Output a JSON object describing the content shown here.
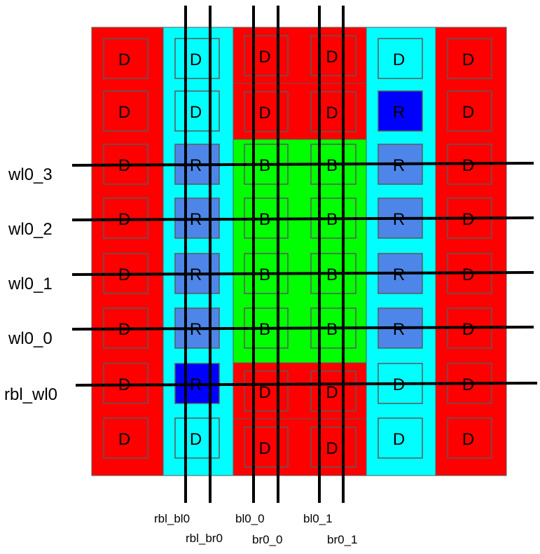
{
  "colors": {
    "dummy_red": "#ff0000",
    "dummy_cyan": "#00ffff",
    "bitcell_green": "#00ff00",
    "replica_blue": "#4d86e8",
    "replica_active": "#0000ff",
    "cell_border": "#5a5a5a",
    "wire": "#000000"
  },
  "cells": [
    [
      "D",
      "D",
      "D",
      "D",
      "D",
      "D"
    ],
    [
      "D",
      "D",
      "D",
      "D",
      "R",
      "D"
    ],
    [
      "D",
      "R",
      "B",
      "B",
      "R",
      "D"
    ],
    [
      "D",
      "R",
      "B",
      "B",
      "R",
      "D"
    ],
    [
      "D",
      "R",
      "B",
      "B",
      "R",
      "D"
    ],
    [
      "D",
      "R",
      "B",
      "B",
      "R",
      "D"
    ],
    [
      "D",
      "R",
      "D",
      "D",
      "D",
      "D"
    ],
    [
      "D",
      "D",
      "D",
      "D",
      "D",
      "D"
    ]
  ],
  "wordlines": [
    "wl0_3",
    "wl0_2",
    "wl0_1",
    "wl0_0",
    "rbl_wl0"
  ],
  "bitlines": [
    "rbl_bl0",
    "rbl_br0",
    "bl0_0",
    "br0_0",
    "bl0_1",
    "br0_1"
  ]
}
